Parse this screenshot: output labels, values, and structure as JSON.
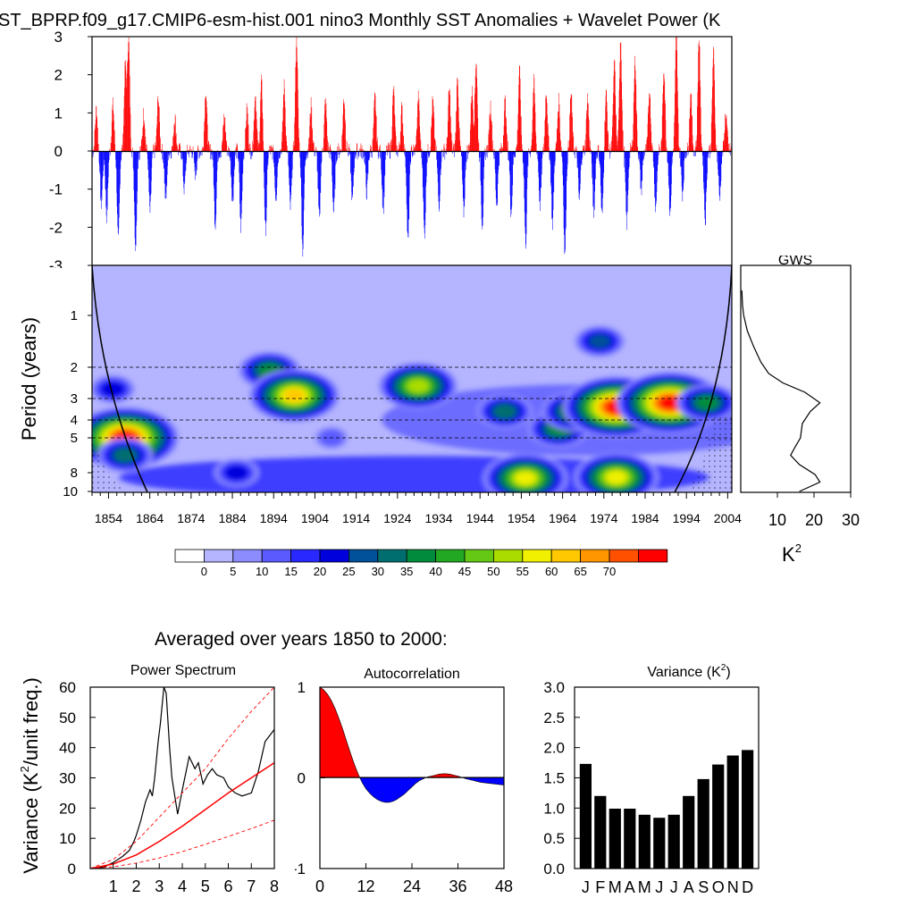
{
  "page": {
    "title": "ST_BPRP.f09_g17.CMIP6-esm-hist.001 nino3 Monthly SST Anomalies + Wavelet Power (K",
    "section_title": "Averaged over years 1850 to 2000:"
  },
  "chart_data": [
    {
      "type": "bar",
      "name": "Monthly SST anomaly time series",
      "xlim": [
        1850,
        2005
      ],
      "ylim": [
        -3,
        3
      ],
      "yticks": [
        "3",
        "2",
        "1",
        "0",
        "-1",
        "-2",
        "-3"
      ],
      "positive_color": "#ff0000",
      "negative_color": "#0000ff",
      "events": [
        {
          "year": 1851.0,
          "value": 1.1
        },
        {
          "year": 1852.2,
          "value": -1.4
        },
        {
          "year": 1853.5,
          "value": -1.7
        },
        {
          "year": 1855.0,
          "value": 1.2
        },
        {
          "year": 1856.3,
          "value": -2.4
        },
        {
          "year": 1858.0,
          "value": 2.2
        },
        {
          "year": 1858.8,
          "value": 3.0
        },
        {
          "year": 1860.5,
          "value": -2.5
        },
        {
          "year": 1862.5,
          "value": 1.0
        },
        {
          "year": 1864.0,
          "value": -1.6
        },
        {
          "year": 1866.0,
          "value": 1.4
        },
        {
          "year": 1867.8,
          "value": -1.3
        },
        {
          "year": 1870.0,
          "value": 0.9
        },
        {
          "year": 1872.3,
          "value": -1.0
        },
        {
          "year": 1875.0,
          "value": -0.6
        },
        {
          "year": 1877.5,
          "value": 1.6
        },
        {
          "year": 1879.8,
          "value": -1.9
        },
        {
          "year": 1882.0,
          "value": 0.9
        },
        {
          "year": 1884.0,
          "value": -1.3
        },
        {
          "year": 1886.0,
          "value": -2.0
        },
        {
          "year": 1887.5,
          "value": 1.1
        },
        {
          "year": 1889.5,
          "value": 1.5
        },
        {
          "year": 1891.0,
          "value": 1.8
        },
        {
          "year": 1892.0,
          "value": -2.1
        },
        {
          "year": 1894.5,
          "value": -1.2
        },
        {
          "year": 1896.5,
          "value": 1.7
        },
        {
          "year": 1898.0,
          "value": -1.5
        },
        {
          "year": 1899.5,
          "value": 3.0
        },
        {
          "year": 1901.0,
          "value": -2.6
        },
        {
          "year": 1903.0,
          "value": 1.2
        },
        {
          "year": 1905.0,
          "value": -1.8
        },
        {
          "year": 1906.5,
          "value": 1.3
        },
        {
          "year": 1908.5,
          "value": -1.6
        },
        {
          "year": 1911.0,
          "value": 1.4
        },
        {
          "year": 1913.0,
          "value": -1.3
        },
        {
          "year": 1916.5,
          "value": -1.1
        },
        {
          "year": 1918.5,
          "value": 1.4
        },
        {
          "year": 1920.5,
          "value": -1.5
        },
        {
          "year": 1923.0,
          "value": 1.6
        },
        {
          "year": 1925.0,
          "value": 1.1
        },
        {
          "year": 1926.5,
          "value": -2.4
        },
        {
          "year": 1929.0,
          "value": 1.4
        },
        {
          "year": 1930.5,
          "value": -2.2
        },
        {
          "year": 1932.5,
          "value": 1.3
        },
        {
          "year": 1934.0,
          "value": -1.4
        },
        {
          "year": 1936.5,
          "value": 1.6
        },
        {
          "year": 1938.5,
          "value": 1.9
        },
        {
          "year": 1940.0,
          "value": -1.6
        },
        {
          "year": 1942.0,
          "value": 1.6
        },
        {
          "year": 1943.0,
          "value": 2.4
        },
        {
          "year": 1944.5,
          "value": -1.9
        },
        {
          "year": 1946.5,
          "value": 1.2
        },
        {
          "year": 1948.0,
          "value": -1.4
        },
        {
          "year": 1950.0,
          "value": 1.3
        },
        {
          "year": 1951.5,
          "value": -1.6
        },
        {
          "year": 1953.5,
          "value": 2.1
        },
        {
          "year": 1955.0,
          "value": -2.4
        },
        {
          "year": 1957.0,
          "value": 1.8
        },
        {
          "year": 1958.5,
          "value": -1.4
        },
        {
          "year": 1960.0,
          "value": 1.6
        },
        {
          "year": 1961.5,
          "value": -1.9
        },
        {
          "year": 1963.0,
          "value": 1.3
        },
        {
          "year": 1964.5,
          "value": -2.7
        },
        {
          "year": 1966.0,
          "value": 1.5
        },
        {
          "year": 1968.0,
          "value": -1.3
        },
        {
          "year": 1970.0,
          "value": 1.4
        },
        {
          "year": 1971.5,
          "value": -1.6
        },
        {
          "year": 1973.5,
          "value": -1.7
        },
        {
          "year": 1974.5,
          "value": 1.5
        },
        {
          "year": 1976.5,
          "value": 2.3
        },
        {
          "year": 1978.0,
          "value": 3.0
        },
        {
          "year": 1979.5,
          "value": -1.9
        },
        {
          "year": 1981.5,
          "value": 2.4
        },
        {
          "year": 1983.0,
          "value": -1.0
        },
        {
          "year": 1985.0,
          "value": 1.6
        },
        {
          "year": 1986.5,
          "value": -1.5
        },
        {
          "year": 1988.5,
          "value": 2.2
        },
        {
          "year": 1990.0,
          "value": -1.6
        },
        {
          "year": 1991.5,
          "value": 3.0
        },
        {
          "year": 1993.0,
          "value": -1.1
        },
        {
          "year": 1995.0,
          "value": 1.5
        },
        {
          "year": 1997.0,
          "value": 3.0
        },
        {
          "year": 1998.5,
          "value": -1.8
        },
        {
          "year": 2000.5,
          "value": 2.6
        },
        {
          "year": 2002.0,
          "value": -1.2
        },
        {
          "year": 2003.5,
          "value": 1.0
        }
      ]
    },
    {
      "type": "heatmap",
      "name": "Wavelet power",
      "ylabel": "Period (years)",
      "yticks": [
        "1",
        "2",
        "3",
        "4",
        "5",
        "8",
        "10"
      ],
      "xticks": [
        "1854",
        "1864",
        "1874",
        "1884",
        "1894",
        "1904",
        "1914",
        "1924",
        "1934",
        "1944",
        "1954",
        "1964",
        "1974",
        "1984",
        "1994",
        "2004"
      ],
      "xlim": [
        1850,
        2005
      ],
      "dashed_periods": [
        2,
        3,
        4,
        5
      ],
      "colorbar_labels": [
        "0",
        "5",
        "10",
        "15",
        "20",
        "25",
        "30",
        "35",
        "40",
        "45",
        "50",
        "55",
        "60",
        "65",
        "70"
      ],
      "colorbar_colors": [
        "#ffffff",
        "#b4b4ff",
        "#8c8cff",
        "#5a5aff",
        "#2828ff",
        "#0000dc",
        "#00509a",
        "#006e6e",
        "#008c3c",
        "#22a822",
        "#64c814",
        "#aadc00",
        "#f0f000",
        "#ffc800",
        "#ff9600",
        "#ff5000",
        "#ff0000"
      ],
      "blobs": [
        {
          "year": 1858,
          "period": 5.0,
          "level": 15
        },
        {
          "year": 1858,
          "period": 6.5,
          "level": 6
        },
        {
          "year": 1855,
          "period": 2.7,
          "level": 4
        },
        {
          "year": 1893,
          "period": 2.1,
          "level": 7
        },
        {
          "year": 1899,
          "period": 2.9,
          "level": 12
        },
        {
          "year": 1885,
          "period": 8.0,
          "level": 4
        },
        {
          "year": 1929,
          "period": 2.6,
          "level": 10
        },
        {
          "year": 1950,
          "period": 3.6,
          "level": 6
        },
        {
          "year": 1955,
          "period": 8.6,
          "level": 11
        },
        {
          "year": 1963,
          "period": 4.5,
          "level": 7
        },
        {
          "year": 1967,
          "period": 3.6,
          "level": 8
        },
        {
          "year": 1977,
          "period": 3.4,
          "level": 15
        },
        {
          "year": 1990,
          "period": 3.2,
          "level": 15
        },
        {
          "year": 1977,
          "period": 8.5,
          "level": 11
        },
        {
          "year": 1999,
          "period": 3.2,
          "level": 7
        },
        {
          "year": 1908,
          "period": 5.0,
          "level": 2
        },
        {
          "year": 1973,
          "period": 1.5,
          "level": 5
        }
      ]
    },
    {
      "type": "line",
      "name": "Global wavelet spectrum",
      "title": "GWS",
      "xticks": [
        "10",
        "20",
        "30"
      ],
      "xlabel": "K",
      "xlabel_superscript": "2",
      "xlim": [
        0,
        30
      ],
      "points": [
        {
          "period": 0.5,
          "power": 0.3
        },
        {
          "period": 0.8,
          "power": 0.5
        },
        {
          "period": 1.0,
          "power": 0.8
        },
        {
          "period": 1.3,
          "power": 1.8
        },
        {
          "period": 1.6,
          "power": 3.5
        },
        {
          "period": 1.9,
          "power": 5.5
        },
        {
          "period": 2.2,
          "power": 7.6
        },
        {
          "period": 2.5,
          "power": 11.5
        },
        {
          "period": 2.8,
          "power": 17.5
        },
        {
          "period": 3.2,
          "power": 21.6
        },
        {
          "period": 3.6,
          "power": 19.0
        },
        {
          "period": 4.2,
          "power": 16.8
        },
        {
          "period": 5.0,
          "power": 16.3
        },
        {
          "period": 5.8,
          "power": 14.8
        },
        {
          "period": 6.5,
          "power": 13.6
        },
        {
          "period": 7.3,
          "power": 16.0
        },
        {
          "period": 8.2,
          "power": 20.3
        },
        {
          "period": 9.0,
          "power": 21.6
        },
        {
          "period": 10.0,
          "power": 16.0
        }
      ]
    },
    {
      "type": "line",
      "name": "Power spectrum",
      "title": "Power Spectrum",
      "ylabel": "Variance (K",
      "ylabel_sup": "2",
      "ylabel_tail": "/unit freq.)",
      "xlim": [
        0,
        8
      ],
      "ylim": [
        0,
        60
      ],
      "xticks": [
        "1",
        "2",
        "3",
        "4",
        "5",
        "6",
        "7",
        "8"
      ],
      "yticks": [
        "0",
        "10",
        "20",
        "30",
        "40",
        "50",
        "60"
      ],
      "series": [
        {
          "name": "spectrum",
          "x": [
            0.2,
            0.6,
            1.0,
            1.4,
            1.7,
            1.9,
            2.0,
            2.2,
            2.4,
            2.6,
            2.7,
            2.8,
            2.95,
            3.05,
            3.2,
            3.3,
            3.45,
            3.55,
            3.8,
            4.0,
            4.3,
            4.55,
            4.7,
            4.9,
            5.1,
            5.3,
            5.5,
            5.8,
            6.0,
            6.3,
            6.6,
            7.0,
            7.3,
            7.6,
            8.0
          ],
          "y": [
            0,
            0.5,
            2,
            4,
            6,
            9,
            11,
            16,
            22,
            26,
            24,
            30,
            42,
            48,
            60,
            58,
            40,
            30,
            18,
            26,
            37,
            33,
            35,
            28,
            31,
            33,
            31,
            30,
            27,
            25,
            24,
            25,
            32,
            42,
            46
          ]
        },
        {
          "name": "red-noise",
          "x": [
            0,
            1,
            2,
            3,
            4,
            5,
            6,
            7,
            8
          ],
          "y": [
            0,
            1.5,
            4.5,
            9,
            14,
            19.5,
            25,
            30,
            35
          ]
        },
        {
          "name": "upper-bound",
          "x": [
            0,
            1,
            2,
            3,
            4,
            5,
            6,
            7,
            8
          ],
          "y": [
            0,
            3,
            9,
            17,
            25,
            33,
            43,
            52,
            61
          ]
        },
        {
          "name": "lower-bound",
          "x": [
            0,
            1,
            2,
            3,
            4,
            5,
            6,
            7,
            8
          ],
          "y": [
            0,
            0.6,
            1.8,
            3.5,
            5.6,
            8,
            10.6,
            13.2,
            16
          ]
        }
      ]
    },
    {
      "type": "area",
      "name": "Autocorrelation",
      "title": "Autocorrelation",
      "xlim": [
        0,
        48
      ],
      "ylim": [
        -1,
        1
      ],
      "xticks": [
        "0",
        "12",
        "24",
        "36",
        "48"
      ],
      "yticks": [
        "1",
        "0",
        "-1"
      ],
      "positive_color": "#ff0000",
      "negative_color": "#0000ff",
      "x": [
        0,
        1,
        2,
        3,
        4,
        5,
        6,
        7,
        8,
        9,
        10,
        11,
        12,
        13,
        14,
        15,
        16,
        17,
        18,
        19,
        20,
        21,
        22,
        23,
        24,
        25,
        26,
        27,
        28,
        29,
        30,
        31,
        32,
        33,
        34,
        35,
        36,
        37,
        38,
        39,
        40,
        41,
        42,
        43,
        44,
        45,
        46,
        47,
        48
      ],
      "y": [
        1.0,
        0.97,
        0.92,
        0.85,
        0.76,
        0.65,
        0.53,
        0.4,
        0.27,
        0.15,
        0.04,
        -0.05,
        -0.12,
        -0.17,
        -0.21,
        -0.24,
        -0.26,
        -0.27,
        -0.27,
        -0.26,
        -0.24,
        -0.21,
        -0.18,
        -0.14,
        -0.1,
        -0.06,
        -0.03,
        -0.01,
        0.01,
        0.02,
        0.03,
        0.04,
        0.045,
        0.045,
        0.04,
        0.03,
        0.02,
        0.005,
        -0.01,
        -0.02,
        -0.03,
        -0.04,
        -0.05,
        -0.055,
        -0.06,
        -0.065,
        -0.07,
        -0.075,
        -0.08
      ]
    },
    {
      "type": "bar",
      "name": "Monthly variance",
      "title": "Variance (K",
      "title_sup": "2",
      "title_tail": ")",
      "ylim": [
        0,
        3
      ],
      "yticks": [
        "3.0",
        "2.5",
        "2.0",
        "1.5",
        "1.0",
        "0.5",
        "0.0"
      ],
      "categories": [
        "J",
        "F",
        "M",
        "A",
        "M",
        "J",
        "J",
        "A",
        "S",
        "O",
        "N",
        "D"
      ],
      "values": [
        1.73,
        1.2,
        0.99,
        0.99,
        0.89,
        0.84,
        0.89,
        1.2,
        1.48,
        1.72,
        1.87,
        1.96
      ]
    }
  ]
}
